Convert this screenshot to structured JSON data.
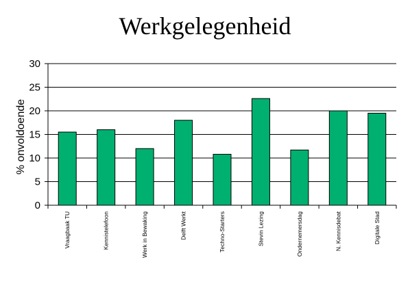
{
  "chart_data": {
    "type": "bar",
    "title": "Werkgelegenheid",
    "ylabel": "% onvoldoende",
    "xlabel": "",
    "ylim": [
      0,
      30
    ],
    "yticks": [
      0,
      5,
      10,
      15,
      20,
      25,
      30
    ],
    "grid": true,
    "categories": [
      "Vraagbaak TU",
      "Kennistelefoon",
      "Werk in Bewaking",
      "Delft Werkt",
      "Techno-Starters",
      "Stevin Lezing",
      "Ondernemersdag",
      "N. Kennisdebat",
      "Digitale Stad"
    ],
    "values": [
      15.5,
      16,
      12,
      18,
      10.8,
      22.6,
      11.7,
      20,
      19.5
    ],
    "colors": {
      "bar": "#00B070",
      "axis": "#000000"
    }
  }
}
